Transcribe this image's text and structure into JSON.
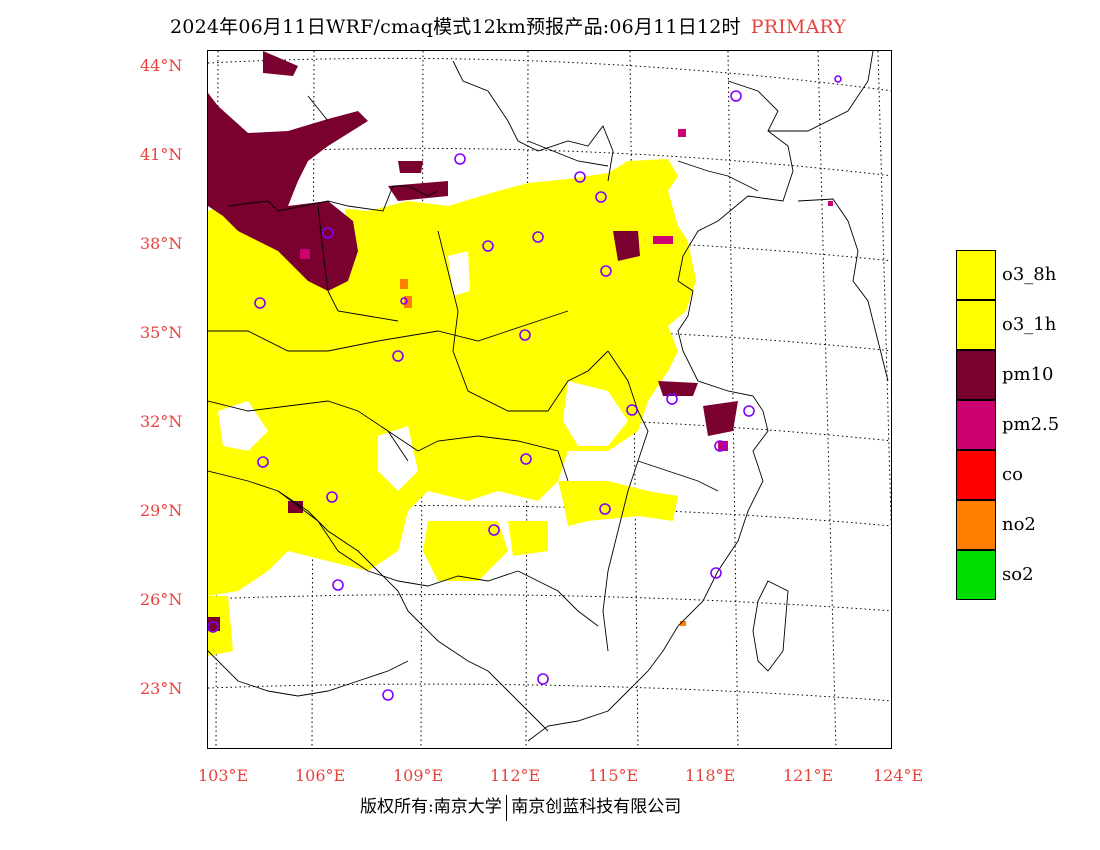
{
  "header": {
    "title": "2024年06月11日WRF/cmaq模式12km预报产品:06月11日12时",
    "product": "PRIMARY"
  },
  "map": {
    "lat_labels": [
      "44°N",
      "41°N",
      "38°N",
      "35°N",
      "32°N",
      "29°N",
      "26°N",
      "23°N"
    ],
    "lon_labels": [
      "103°E",
      "106°E",
      "109°E",
      "112°E",
      "115°E",
      "118°E",
      "121°E",
      "124°E"
    ],
    "fill_color_o3": "#ffff00",
    "fill_color_pm10": "#7a0030",
    "fill_color_pm25": "#cc0070",
    "station_marker_color": "#8000ff",
    "station_count": 27
  },
  "legend": {
    "items": [
      {
        "label": "o3_8h",
        "color": "#ffff00"
      },
      {
        "label": "o3_1h",
        "color": "#ffff00"
      },
      {
        "label": "pm10",
        "color": "#7a0030"
      },
      {
        "label": "pm2.5",
        "color": "#cc0070"
      },
      {
        "label": "co",
        "color": "#ff0000"
      },
      {
        "label": "no2",
        "color": "#ff8000"
      },
      {
        "label": "so2",
        "color": "#00dd00"
      }
    ]
  },
  "footer": {
    "left": "版权所有:南京大学",
    "right": "南京创蓝科技有限公司"
  }
}
